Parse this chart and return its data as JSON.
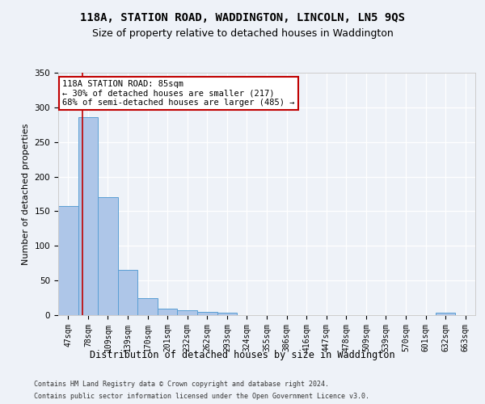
{
  "title": "118A, STATION ROAD, WADDINGTON, LINCOLN, LN5 9QS",
  "subtitle": "Size of property relative to detached houses in Waddington",
  "xlabel": "Distribution of detached houses by size in Waddington",
  "ylabel": "Number of detached properties",
  "bin_labels": [
    "47sqm",
    "78sqm",
    "109sqm",
    "139sqm",
    "170sqm",
    "201sqm",
    "232sqm",
    "262sqm",
    "293sqm",
    "324sqm",
    "355sqm",
    "386sqm",
    "416sqm",
    "447sqm",
    "478sqm",
    "509sqm",
    "539sqm",
    "570sqm",
    "601sqm",
    "632sqm",
    "663sqm"
  ],
  "bar_heights": [
    157,
    286,
    170,
    65,
    25,
    9,
    7,
    5,
    4,
    0,
    0,
    0,
    0,
    0,
    0,
    0,
    0,
    0,
    0,
    4,
    0
  ],
  "bar_color": "#aec6e8",
  "bar_edge_color": "#5a9fd4",
  "vline_color": "#c00000",
  "annotation_text": "118A STATION ROAD: 85sqm\n← 30% of detached houses are smaller (217)\n68% of semi-detached houses are larger (485) →",
  "annotation_box_color": "#ffffff",
  "annotation_box_edge_color": "#c00000",
  "ylim": [
    0,
    350
  ],
  "yticks": [
    0,
    50,
    100,
    150,
    200,
    250,
    300,
    350
  ],
  "footer_line1": "Contains HM Land Registry data © Crown copyright and database right 2024.",
  "footer_line2": "Contains public sector information licensed under the Open Government Licence v3.0.",
  "background_color": "#eef2f8",
  "grid_color": "#ffffff",
  "title_fontsize": 10,
  "subtitle_fontsize": 9,
  "tick_fontsize": 7,
  "ylabel_fontsize": 8,
  "xlabel_fontsize": 8.5,
  "annotation_fontsize": 7.5,
  "footer_fontsize": 6
}
